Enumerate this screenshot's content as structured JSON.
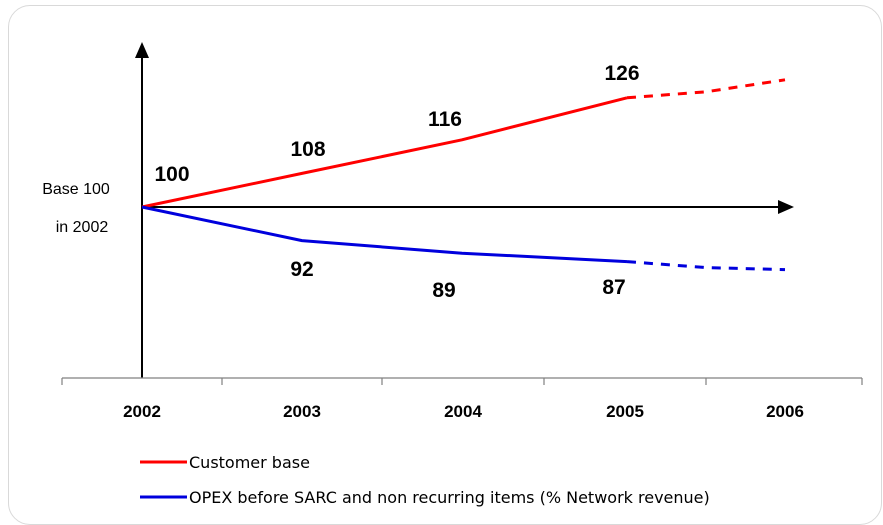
{
  "chart_data": {
    "type": "line",
    "categories": [
      "2002",
      "2003",
      "2004",
      "2005",
      "2006"
    ],
    "series": [
      {
        "name": "Customer base",
        "color": "#ff0000",
        "values": [
          100,
          108,
          116,
          126,
          null
        ],
        "value_labels": [
          "100",
          "108",
          "116",
          "126"
        ],
        "projected_to": "2006"
      },
      {
        "name": "OPEX before SARC and non recurring items (% Network revenue)",
        "color": "#0000dd",
        "values": [
          100,
          92,
          89,
          87,
          null
        ],
        "value_labels": [
          "",
          "92",
          "89",
          "87"
        ],
        "projected_to": "2006"
      }
    ],
    "base_label": [
      "Base 100",
      "in 2002"
    ],
    "legend_position": "bottom-left",
    "grid": false
  }
}
